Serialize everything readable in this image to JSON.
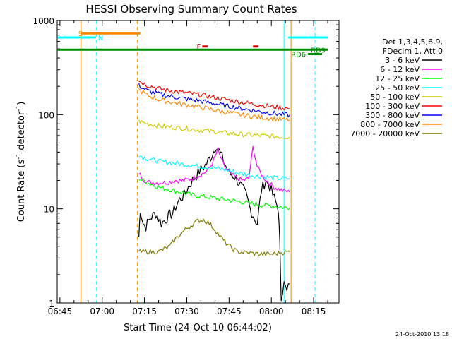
{
  "chart_data": {
    "type": "line",
    "title": "HESSI Observing Summary Count Rates",
    "xlabel": "Start Time (24-Oct-10 06:44:02)",
    "ylabel_main": "Count Rate (s",
    "ylabel_sup1": "-1",
    "ylabel_mid": " detector",
    "ylabel_sup2": "-1",
    "ylabel_end": ")",
    "timestamp": "24-Oct-2010 13:18",
    "y_scale": "log",
    "ylim": [
      1,
      1000
    ],
    "xlim": [
      "06:44:02",
      "08:24:00"
    ],
    "x_ticks": [
      {
        "label": "06:45",
        "t": 45
      },
      {
        "label": "07:00",
        "t": 60
      },
      {
        "label": "07:15",
        "t": 75
      },
      {
        "label": "07:30",
        "t": 90
      },
      {
        "label": "07:45",
        "t": 105
      },
      {
        "label": "08:00",
        "t": 120
      },
      {
        "label": "08:15",
        "t": 135
      }
    ],
    "y_ticks": [
      {
        "label": "1",
        "v": 1
      },
      {
        "label": "10",
        "v": 10
      },
      {
        "label": "100",
        "v": 100
      },
      {
        "label": "1000",
        "v": 1000
      }
    ],
    "legend": {
      "header1": "Det 1,3,4,5,6,9,",
      "header2": "FDecim 1, Att 0",
      "placement": "right"
    },
    "series": [
      {
        "name": "3 - 6 keV",
        "color": "#000000",
        "points": [
          [
            73,
            5
          ],
          [
            73.5,
            10
          ],
          [
            74.5,
            7
          ],
          [
            75.5,
            6.5
          ],
          [
            77,
            8
          ],
          [
            79,
            9
          ],
          [
            81,
            7
          ],
          [
            83,
            8
          ],
          [
            85,
            9
          ],
          [
            87,
            12
          ],
          [
            89,
            14
          ],
          [
            91,
            18
          ],
          [
            93,
            22
          ],
          [
            95,
            26
          ],
          [
            97,
            30
          ],
          [
            99,
            38
          ],
          [
            100.5,
            48
          ],
          [
            102,
            38
          ],
          [
            103.5,
            30
          ],
          [
            105,
            24
          ],
          [
            107,
            22
          ],
          [
            109,
            18
          ],
          [
            111,
            14
          ],
          [
            112.5,
            10
          ],
          [
            114,
            8
          ],
          [
            115,
            7
          ],
          [
            116.5,
            16
          ],
          [
            118,
            20
          ],
          [
            119.5,
            17
          ],
          [
            121,
            13
          ],
          [
            122.5,
            10
          ],
          [
            123,
            4
          ],
          [
            123.5,
            1.2
          ],
          [
            124.5,
            1.6
          ],
          [
            125.5,
            1.3
          ],
          [
            126.5,
            1.6
          ]
        ]
      },
      {
        "name": "6 - 12 keV",
        "color": "#ff00ff",
        "points": [
          [
            73,
            24
          ],
          [
            75,
            20
          ],
          [
            77,
            19
          ],
          [
            80,
            19
          ],
          [
            83,
            19
          ],
          [
            86,
            20
          ],
          [
            89,
            20
          ],
          [
            92,
            21
          ],
          [
            95,
            23
          ],
          [
            97,
            25
          ],
          [
            99,
            30
          ],
          [
            101,
            42
          ],
          [
            102.5,
            32
          ],
          [
            104,
            26
          ],
          [
            106,
            23
          ],
          [
            108,
            21
          ],
          [
            110,
            20
          ],
          [
            112,
            21
          ],
          [
            113.5,
            45
          ],
          [
            115,
            28
          ],
          [
            117,
            22
          ],
          [
            119,
            19
          ],
          [
            121,
            17
          ],
          [
            123,
            16
          ],
          [
            126.5,
            15
          ]
        ]
      },
      {
        "name": "12 - 25 keV",
        "color": "#00ff00",
        "points": [
          [
            73,
            21
          ],
          [
            76,
            19
          ],
          [
            80,
            17
          ],
          [
            84,
            16
          ],
          [
            88,
            15
          ],
          [
            92,
            14
          ],
          [
            96,
            13.5
          ],
          [
            100,
            13
          ],
          [
            104,
            12.5
          ],
          [
            108,
            12
          ],
          [
            112,
            11.5
          ],
          [
            116,
            11
          ],
          [
            120,
            10.8
          ],
          [
            123,
            10.5
          ],
          [
            126.5,
            10.2
          ]
        ]
      },
      {
        "name": "25 - 50 keV",
        "color": "#00ffff",
        "points": [
          [
            73,
            37
          ],
          [
            76,
            34
          ],
          [
            80,
            32
          ],
          [
            84,
            31
          ],
          [
            88,
            30
          ],
          [
            92,
            29
          ],
          [
            96,
            28
          ],
          [
            100,
            27
          ],
          [
            104,
            26
          ],
          [
            108,
            24
          ],
          [
            112,
            23
          ],
          [
            116,
            22
          ],
          [
            120,
            21.5
          ],
          [
            123,
            21
          ],
          [
            126.5,
            21
          ]
        ]
      },
      {
        "name": "50 - 100 keV",
        "color": "#cccc00",
        "points": [
          [
            73,
            85
          ],
          [
            76,
            80
          ],
          [
            80,
            76
          ],
          [
            84,
            74
          ],
          [
            88,
            72
          ],
          [
            92,
            70
          ],
          [
            96,
            68
          ],
          [
            100,
            66
          ],
          [
            104,
            64
          ],
          [
            108,
            62
          ],
          [
            112,
            61
          ],
          [
            116,
            60
          ],
          [
            120,
            59
          ],
          [
            123,
            58
          ],
          [
            126.5,
            58
          ]
        ]
      },
      {
        "name": "100 - 300 keV",
        "color": "#ff0000",
        "points": [
          [
            73,
            230
          ],
          [
            76,
            205
          ],
          [
            80,
            190
          ],
          [
            84,
            180
          ],
          [
            88,
            173
          ],
          [
            92,
            167
          ],
          [
            96,
            160
          ],
          [
            100,
            152
          ],
          [
            104,
            145
          ],
          [
            108,
            138
          ],
          [
            112,
            132
          ],
          [
            116,
            127
          ],
          [
            120,
            122
          ],
          [
            123,
            119
          ],
          [
            126.5,
            116
          ]
        ]
      },
      {
        "name": "300 - 800 keV",
        "color": "#0000ff",
        "points": [
          [
            73,
            205
          ],
          [
            76,
            180
          ],
          [
            80,
            166
          ],
          [
            84,
            157
          ],
          [
            88,
            150
          ],
          [
            92,
            144
          ],
          [
            96,
            138
          ],
          [
            100,
            131
          ],
          [
            104,
            124
          ],
          [
            108,
            118
          ],
          [
            112,
            113
          ],
          [
            116,
            108
          ],
          [
            120,
            104
          ],
          [
            123,
            101
          ],
          [
            126.5,
            99
          ]
        ]
      },
      {
        "name": "800 - 7000 keV",
        "color": "#ff8800",
        "points": [
          [
            73,
            185
          ],
          [
            76,
            160
          ],
          [
            80,
            145
          ],
          [
            84,
            137
          ],
          [
            88,
            130
          ],
          [
            92,
            124
          ],
          [
            96,
            118
          ],
          [
            100,
            112
          ],
          [
            104,
            106
          ],
          [
            108,
            101
          ],
          [
            112,
            97
          ],
          [
            116,
            94
          ],
          [
            120,
            91
          ],
          [
            123,
            89
          ],
          [
            126.5,
            88
          ]
        ]
      },
      {
        "name": "7000 - 20000 keV",
        "color": "#808000",
        "points": [
          [
            73,
            3.5
          ],
          [
            76,
            3.5
          ],
          [
            80,
            3.5
          ],
          [
            84,
            4
          ],
          [
            86,
            4.8
          ],
          [
            88,
            5.5
          ],
          [
            90,
            6.2
          ],
          [
            92,
            6.8
          ],
          [
            94,
            7.5
          ],
          [
            96,
            7.6
          ],
          [
            98,
            7
          ],
          [
            100,
            6
          ],
          [
            102,
            5
          ],
          [
            104,
            4.3
          ],
          [
            106,
            3.8
          ],
          [
            108,
            3.5
          ],
          [
            112,
            3.4
          ],
          [
            116,
            3.3
          ],
          [
            120,
            3.3
          ],
          [
            123,
            3.4
          ],
          [
            126.5,
            3.5
          ]
        ]
      }
    ],
    "annotations": {
      "flags": [
        {
          "label": "S",
          "color": "#ff8800",
          "y_value": 730,
          "t_start": 52.5,
          "t_end": 73.5,
          "label_t": 51.5
        },
        {
          "label": "N",
          "color": "#00ffff",
          "y_value": 660,
          "t_start": 44.2,
          "t_end": 57.8,
          "label_t": 58.5
        },
        {
          "label": "F",
          "color": "#cc0000",
          "y_value": 530,
          "t_start": 95.5,
          "t_end": 97.5,
          "label_t": 93.5
        },
        {
          "label": "",
          "color": "#cc0000",
          "y_value": 530,
          "t_start": 113.5,
          "t_end": 115.5,
          "label_t": 0
        },
        {
          "label": "RD9",
          "color": "#008800",
          "y_value": 490,
          "t_start": 44.2,
          "t_end": 140,
          "label_t": 134
        },
        {
          "label": "RD6",
          "color": "#008800",
          "y_value": 440,
          "t_start": 133,
          "t_end": 138,
          "label_t": 127
        },
        {
          "label": "",
          "color": "#00ffff",
          "y_value": 660,
          "t_start": 126,
          "t_end": 140,
          "label_t": 0
        }
      ],
      "vlines": [
        {
          "t": 52.5,
          "color": "#ff8800",
          "dash": false
        },
        {
          "t": 58,
          "color": "#00ffff",
          "dash": true
        },
        {
          "t": 72.5,
          "color": "#ff8800",
          "dash": true
        },
        {
          "t": 124.5,
          "color": "#00ffff",
          "dash": false
        },
        {
          "t": 127,
          "color": "#ff8800",
          "dash": false
        },
        {
          "t": 135.5,
          "color": "#00ffff",
          "dash": true
        }
      ]
    }
  }
}
